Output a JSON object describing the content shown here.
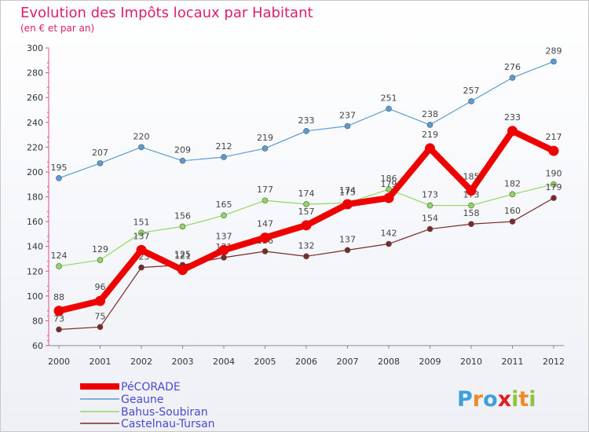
{
  "chart_data": {
    "type": "line",
    "title": "Evolution des Impôts locaux par Habitant",
    "subtitle": "(en € et par an)",
    "xlabel": "",
    "ylabel": "",
    "x": [
      "2000",
      "2001",
      "2002",
      "2003",
      "2004",
      "2005",
      "2006",
      "2007",
      "2008",
      "2009",
      "2010",
      "2011",
      "2012"
    ],
    "ylim": [
      60,
      300
    ],
    "yticks": [
      60,
      80,
      100,
      120,
      140,
      160,
      180,
      200,
      220,
      240,
      260,
      280,
      300
    ],
    "grid": false,
    "legend_position": "bottom-left",
    "series": [
      {
        "name": "PéCORADE",
        "color": "#ee0000",
        "values": [
          88,
          96,
          137,
          121,
          137,
          147,
          157,
          174,
          179,
          219,
          185,
          233,
          217
        ]
      },
      {
        "name": "Geaune",
        "color": "#5b9bd5",
        "values": [
          195,
          207,
          220,
          209,
          212,
          219,
          233,
          237,
          251,
          238,
          257,
          276,
          289
        ]
      },
      {
        "name": "Bahus-Soubiran",
        "color": "#8fd860",
        "values": [
          124,
          129,
          151,
          156,
          165,
          177,
          174,
          175,
          186,
          173,
          173,
          182,
          190
        ]
      },
      {
        "name": "Castelnau-Tursan",
        "color": "#7b2a2a",
        "values": [
          73,
          75,
          123,
          125,
          131,
          136,
          132,
          137,
          142,
          154,
          158,
          160,
          179
        ]
      }
    ]
  },
  "logo": {
    "text": "Proxiti",
    "letters": [
      "P",
      "r",
      "o",
      "x",
      "i",
      "t",
      "i"
    ],
    "colors": [
      "#3f9fdc",
      "#f08a24",
      "#3f9fdc",
      "#e02020",
      "#8cc63f",
      "#f08a24",
      "#8cc63f"
    ]
  },
  "colors": {
    "title": "#dd1f6e",
    "legend_text": "#4a4acc",
    "axis_text": "#333333"
  }
}
